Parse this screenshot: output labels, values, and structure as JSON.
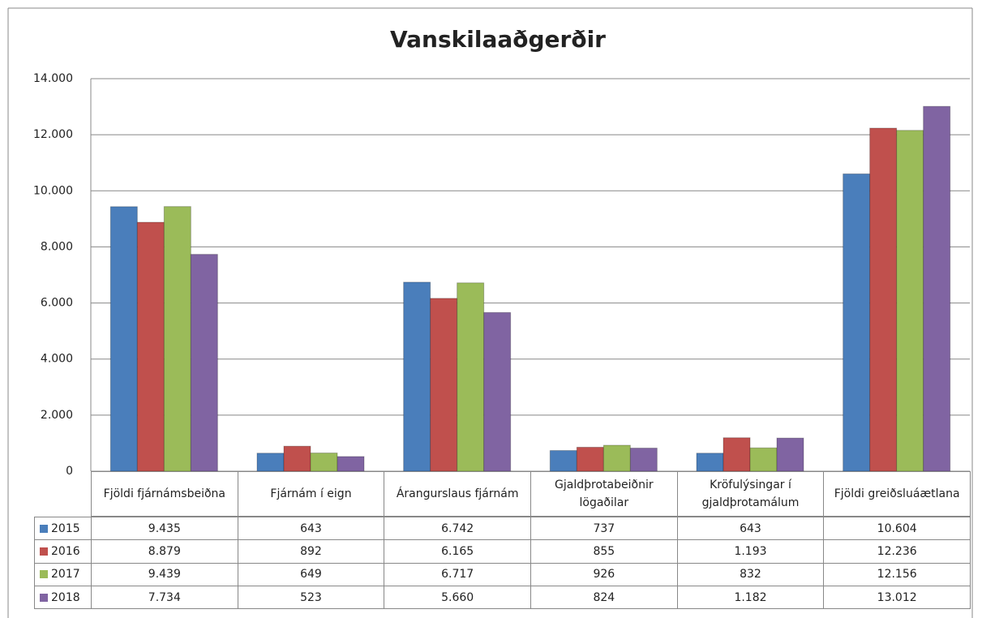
{
  "chart_data": {
    "type": "bar",
    "title": "Vanskilaaðgerðir",
    "categories": [
      "Fjöldi fjárnámsbeiðna",
      "Fjárnám í eign",
      "Árangurslaus fjárnám",
      "Gjaldþrotabeiðnir lögaðilar",
      "Kröfulýsingar í gjaldþrotamálum",
      "Fjöldi greiðsluáætlana"
    ],
    "series": [
      {
        "name": "2015",
        "color": "#4a7ebb",
        "values": [
          9435,
          643,
          6742,
          737,
          643,
          10604
        ],
        "value_labels": [
          "9.435",
          "643",
          "6.742",
          "737",
          "643",
          "10.604"
        ]
      },
      {
        "name": "2016",
        "color": "#c0504d",
        "values": [
          8879,
          892,
          6165,
          855,
          1193,
          12236
        ],
        "value_labels": [
          "8.879",
          "892",
          "6.165",
          "855",
          "1.193",
          "12.236"
        ]
      },
      {
        "name": "2017",
        "color": "#9bbb59",
        "values": [
          9439,
          649,
          6717,
          926,
          832,
          12156
        ],
        "value_labels": [
          "9.439",
          "649",
          "6.717",
          "926",
          "832",
          "12.156"
        ]
      },
      {
        "name": "2018",
        "color": "#8064a2",
        "values": [
          7734,
          523,
          5660,
          824,
          1182,
          13012
        ],
        "value_labels": [
          "7.734",
          "523",
          "5.660",
          "824",
          "1.182",
          "13.012"
        ]
      }
    ],
    "ylim": [
      0,
      14000
    ],
    "yticks": [
      0,
      {
        "value": 2000,
        "label": "2.000"
      },
      {
        "value": 4000,
        "label": "4.000"
      },
      {
        "value": 6000,
        "label": "6.000"
      },
      {
        "value": 8000,
        "label": "8.000"
      },
      {
        "value": 10000,
        "label": "10.000"
      },
      {
        "value": 12000,
        "label": "12.000"
      },
      {
        "value": 14000,
        "label": "14.000"
      }
    ],
    "grid": true
  }
}
